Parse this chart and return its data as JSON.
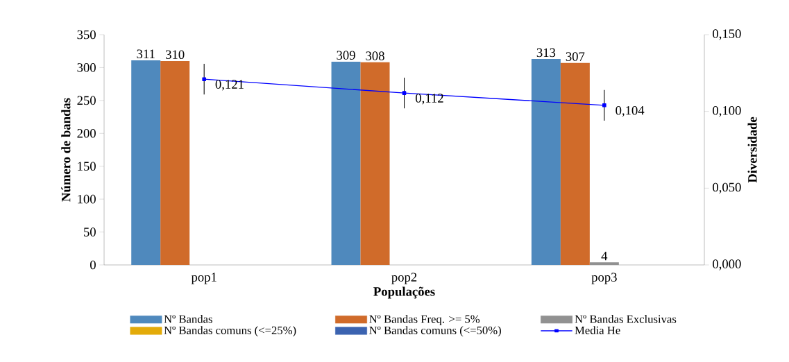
{
  "chart_data": {
    "type": "bar",
    "categories": [
      "pop1",
      "pop2",
      "pop3"
    ],
    "xlabel": "Populações",
    "ylabel": "Número de bandas",
    "y2label": "Diversidade",
    "ylim": [
      0,
      350
    ],
    "yticks": [
      0,
      50,
      100,
      150,
      200,
      250,
      300,
      350
    ],
    "y2lim": [
      0,
      0.15
    ],
    "y2ticks": [
      {
        "value": 0,
        "label": "0,000"
      },
      {
        "value": 0.05,
        "label": "0,050"
      },
      {
        "value": 0.1,
        "label": "0,100"
      },
      {
        "value": 0.15,
        "label": "0,150"
      }
    ],
    "legend": "bottom",
    "series": [
      {
        "name": "Nº Bandas",
        "color": "#4f89bd",
        "values": [
          311,
          309,
          313
        ],
        "value_labels": [
          "311",
          "309",
          "313"
        ]
      },
      {
        "name": "Nº Bandas Freq. >= 5%",
        "color": "#d06b2a",
        "values": [
          310,
          308,
          307
        ],
        "value_labels": [
          "310",
          "308",
          "307"
        ]
      },
      {
        "name": "Nº Bandas Exclusivas",
        "color": "#919191",
        "values": [
          null,
          null,
          4
        ],
        "value_labels": [
          null,
          null,
          "4"
        ]
      },
      {
        "name": "Nº Bandas comuns (<=25%)",
        "color": "#e3ab0a",
        "values": [
          null,
          null,
          null
        ]
      },
      {
        "name": "Nº Bandas comuns (<=50%)",
        "color": "#3b63b0",
        "values": [
          null,
          null,
          null
        ]
      },
      {
        "name": "Media He",
        "type": "line",
        "axis": "y2",
        "color": "#0000ff",
        "marker": "square",
        "line_style": "solid",
        "values": [
          0.121,
          0.112,
          0.104
        ],
        "errors": [
          0.01,
          0.01,
          0.01
        ],
        "value_labels": [
          "0,121",
          "0,112",
          "0,104"
        ]
      }
    ]
  }
}
